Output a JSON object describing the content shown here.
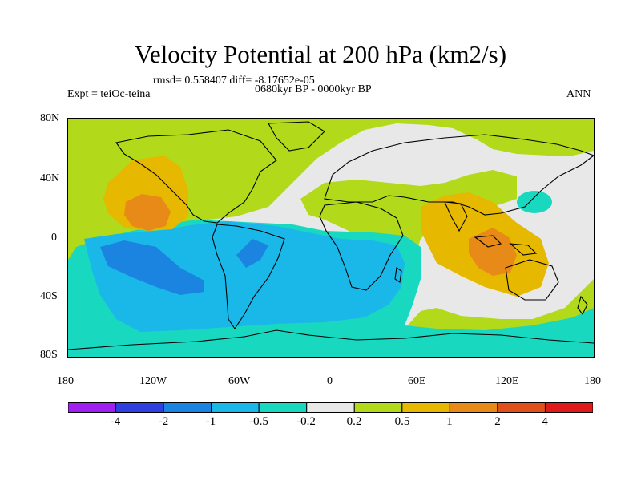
{
  "title": "Velocity Potential at 200 hPa (km2/s)",
  "stats": "rmsd= 0.558407 diff= -8.17652e-05",
  "left_label": "Expt = teiOc-teina",
  "center_label": "0680kyr BP - 0000kyr BP",
  "right_label": "ANN",
  "map": {
    "lat_ticks": [
      "80N",
      "40N",
      "0",
      "40S",
      "80S"
    ],
    "lon_ticks": [
      "180",
      "120W",
      "60W",
      "0",
      "60E",
      "120E",
      "180"
    ]
  },
  "colorbar": {
    "colors": [
      "#a020f0",
      "#3040e0",
      "#1a84e0",
      "#1ab8e8",
      "#18d8c0",
      "#e8e8e8",
      "#b2d91a",
      "#e6b800",
      "#e88a18",
      "#e0501a",
      "#e01a1a"
    ],
    "labels": [
      "-4",
      "-2",
      "-1",
      "-0.5",
      "-0.2",
      "0.2",
      "0.5",
      "1",
      "2",
      "4"
    ]
  }
}
